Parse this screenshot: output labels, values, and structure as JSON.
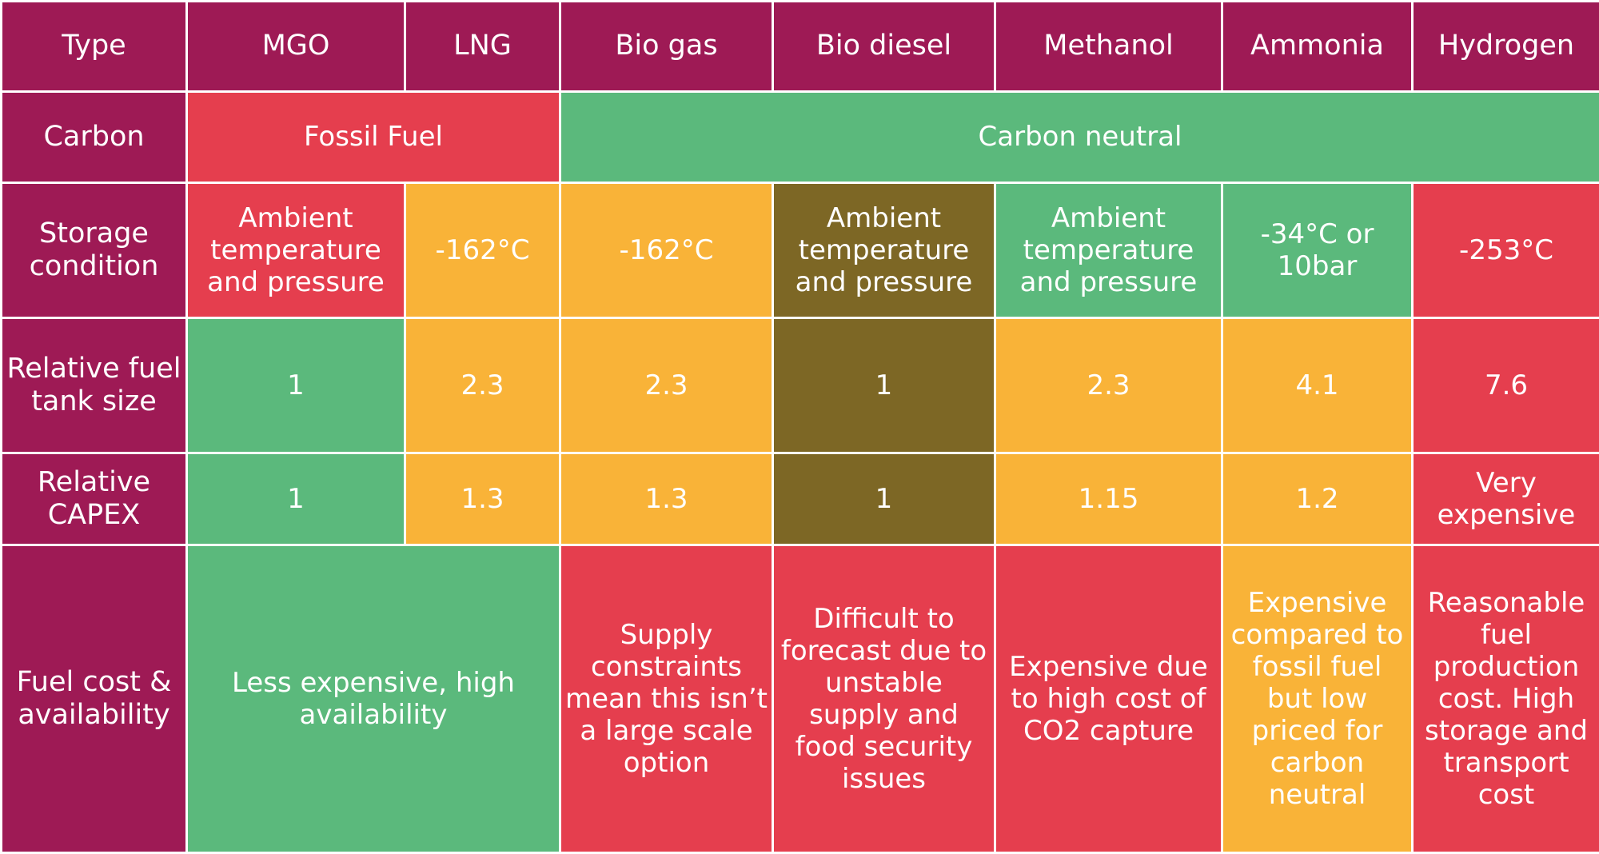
{
  "colors": {
    "header": "#9e1a55",
    "green": "#5bb97c",
    "red": "#e53e4e",
    "amber": "#f9b338",
    "olive": "#7d6725"
  },
  "columns": [
    "Type",
    "MGO",
    "LNG",
    "Bio gas",
    "Bio diesel",
    "Methanol",
    "Ammonia",
    "Hydrogen"
  ],
  "rows": [
    {
      "label": "Carbon",
      "cells": [
        {
          "text": "Fossil Fuel",
          "color": "red"
        },
        {
          "text": "Carbon neutral",
          "color": "green"
        }
      ]
    },
    {
      "label": "Storage condition",
      "cells": [
        {
          "text": "Ambient temperature and pressure",
          "color": "red"
        },
        {
          "text": "-162°C",
          "color": "amber"
        },
        {
          "text": "-162°C",
          "color": "amber"
        },
        {
          "text": "Ambient temperature and pressure",
          "color": "olive"
        },
        {
          "text": "Ambient temperature and pressure",
          "color": "green"
        },
        {
          "text": "-34°C or 10bar",
          "color": "green"
        },
        {
          "text": "-253°C",
          "color": "red"
        }
      ]
    },
    {
      "label": "Relative fuel tank size",
      "cells": [
        {
          "text": "1",
          "color": "green"
        },
        {
          "text": "2.3",
          "color": "amber"
        },
        {
          "text": "2.3",
          "color": "amber"
        },
        {
          "text": "1",
          "color": "olive"
        },
        {
          "text": "2.3",
          "color": "amber"
        },
        {
          "text": "4.1",
          "color": "amber"
        },
        {
          "text": "7.6",
          "color": "red"
        }
      ]
    },
    {
      "label": "Relative CAPEX",
      "cells": [
        {
          "text": "1",
          "color": "green"
        },
        {
          "text": "1.3",
          "color": "amber"
        },
        {
          "text": "1.3",
          "color": "amber"
        },
        {
          "text": "1",
          "color": "olive"
        },
        {
          "text": "1.15",
          "color": "amber"
        },
        {
          "text": "1.2",
          "color": "amber"
        },
        {
          "text": "Very expensive",
          "color": "red"
        }
      ]
    },
    {
      "label": "Fuel cost & availability",
      "cells": [
        {
          "text": "Less expensive, high availability",
          "color": "green"
        },
        {
          "text": "Supply constraints mean this isn’t a large scale option",
          "color": "red"
        },
        {
          "text": "Difficult to forecast due to unstable supply and food security issues",
          "color": "red"
        },
        {
          "text": "Expensive due to high cost of CO2 capture",
          "color": "red"
        },
        {
          "text": "Expensive compared to fossil fuel but low priced for carbon neutral",
          "color": "amber"
        },
        {
          "text": "Reasonable fuel production cost. High storage and transport cost",
          "color": "red"
        }
      ]
    }
  ]
}
